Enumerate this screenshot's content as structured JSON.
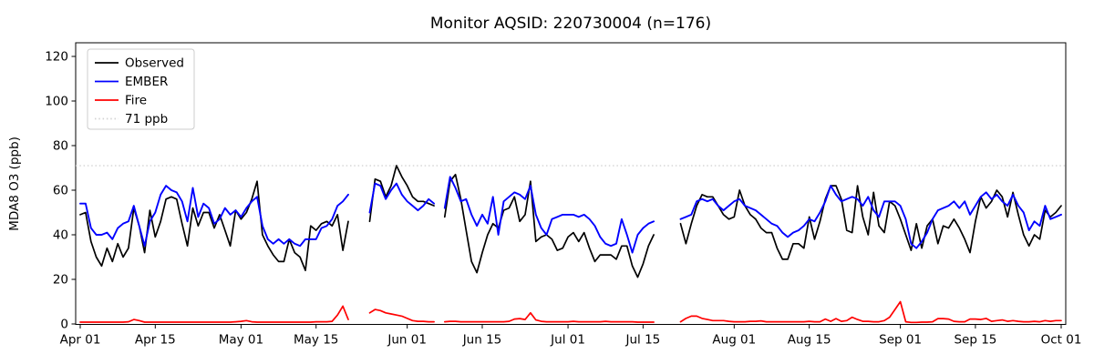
{
  "figure": {
    "background": "#ffffff"
  },
  "chart_data": {
    "type": "line",
    "title": "Monitor AQSID: 220730004 (n=176)",
    "ylabel": "MDA8 O3 (ppb)",
    "xlabel": "",
    "n_label": 176,
    "ylim": [
      0,
      126
    ],
    "yticks": [
      0,
      20,
      40,
      60,
      80,
      100,
      120
    ],
    "x_is_daily_days_from_apr01": true,
    "x_total_days": 183,
    "xticks": [
      {
        "label": "Apr 01",
        "day": 0
      },
      {
        "label": "Apr 15",
        "day": 14
      },
      {
        "label": "May 01",
        "day": 30
      },
      {
        "label": "May 15",
        "day": 44
      },
      {
        "label": "Jun 01",
        "day": 61
      },
      {
        "label": "Jun 15",
        "day": 75
      },
      {
        "label": "Jul 01",
        "day": 91
      },
      {
        "label": "Jul 15",
        "day": 105
      },
      {
        "label": "Aug 01",
        "day": 122
      },
      {
        "label": "Aug 15",
        "day": 136
      },
      {
        "label": "Sep 01",
        "day": 153
      },
      {
        "label": "Sep 15",
        "day": 167
      },
      {
        "label": "Oct 01",
        "day": 183
      }
    ],
    "threshold": {
      "label": "71 ppb",
      "value": 71,
      "color": "#d3d3d3",
      "style": "dotted"
    },
    "legend": {
      "position": "upper-left",
      "entries": [
        "Observed",
        "EMBER",
        "Fire",
        "71 ppb"
      ]
    },
    "missing_days": [
      51,
      52,
      53,
      67,
      108,
      109,
      110,
      111
    ],
    "series": [
      {
        "name": "Observed",
        "color": "#000000",
        "values": [
          49,
          50,
          37,
          30,
          26,
          34,
          28,
          36,
          30,
          34,
          52,
          44,
          32,
          51,
          39,
          46,
          56,
          57,
          56,
          45,
          35,
          52,
          44,
          50,
          50,
          43,
          49,
          42,
          35,
          51,
          47,
          50,
          56,
          64,
          40,
          35,
          31,
          28,
          28,
          38,
          32,
          30,
          24,
          44,
          42,
          45,
          46,
          44,
          49,
          33,
          46,
          null,
          null,
          null,
          46,
          65,
          64,
          57,
          62,
          71,
          66,
          62,
          57,
          55,
          55,
          54,
          53,
          null,
          48,
          64,
          67,
          56,
          42,
          28,
          23,
          32,
          40,
          45,
          43,
          51,
          52,
          57,
          46,
          49,
          64,
          37,
          39,
          40,
          38,
          33,
          34,
          39,
          41,
          37,
          41,
          34,
          28,
          31,
          31,
          31,
          29,
          35,
          35,
          26,
          21,
          27,
          35,
          40,
          null,
          null,
          null,
          null,
          45,
          36,
          45,
          53,
          58,
          57,
          57,
          53,
          49,
          47,
          48,
          60,
          53,
          49,
          47,
          43,
          41,
          41,
          34,
          29,
          29,
          36,
          36,
          34,
          48,
          38,
          46,
          56,
          62,
          62,
          56,
          42,
          41,
          62,
          48,
          40,
          59,
          44,
          41,
          55,
          53,
          47,
          40,
          33,
          45,
          34,
          44,
          47,
          36,
          44,
          43,
          47,
          43,
          38,
          32,
          46,
          57,
          52,
          55,
          60,
          57,
          48,
          59,
          49,
          40,
          35,
          40,
          38,
          51,
          48,
          50,
          53
        ]
      },
      {
        "name": "EMBER",
        "color": "#0000ff",
        "values": [
          54,
          54,
          43,
          40,
          40,
          41,
          38,
          43,
          45,
          46,
          53,
          44,
          35,
          46,
          50,
          58,
          62,
          60,
          59,
          55,
          46,
          61,
          48,
          54,
          52,
          45,
          47,
          52,
          49,
          51,
          48,
          52,
          55,
          57,
          44,
          38,
          36,
          38,
          36,
          38,
          36,
          35,
          38,
          38,
          38,
          43,
          44,
          47,
          53,
          55,
          58,
          null,
          null,
          null,
          50,
          63,
          62,
          56,
          60,
          63,
          58,
          55,
          53,
          51,
          53,
          56,
          54,
          null,
          52,
          66,
          61,
          55,
          56,
          49,
          44,
          49,
          45,
          57,
          40,
          55,
          57,
          59,
          58,
          56,
          62,
          49,
          43,
          40,
          47,
          48,
          49,
          49,
          49,
          48,
          49,
          47,
          44,
          39,
          36,
          35,
          36,
          47,
          40,
          32,
          40,
          43,
          45,
          46,
          null,
          null,
          null,
          null,
          47,
          48,
          49,
          55,
          56,
          55,
          56,
          53,
          51,
          53,
          55,
          56,
          53,
          52,
          51,
          49,
          47,
          45,
          44,
          41,
          39,
          41,
          42,
          44,
          47,
          46,
          50,
          55,
          62,
          58,
          55,
          56,
          57,
          56,
          53,
          57,
          51,
          48,
          55,
          55,
          55,
          53,
          47,
          36,
          34,
          37,
          41,
          47,
          51,
          52,
          53,
          55,
          52,
          55,
          49,
          53,
          57,
          59,
          56,
          58,
          55,
          53,
          58,
          53,
          50,
          42,
          46,
          44,
          53,
          47,
          48,
          49
        ]
      },
      {
        "name": "Fire",
        "color": "#ff0000",
        "values": [
          0.8,
          0.8,
          0.8,
          0.8,
          0.8,
          0.8,
          0.8,
          0.8,
          0.8,
          1,
          2,
          1.5,
          0.8,
          0.8,
          0.8,
          0.8,
          0.8,
          0.8,
          0.8,
          0.8,
          0.8,
          0.8,
          0.8,
          0.8,
          0.8,
          0.8,
          0.8,
          0.8,
          0.8,
          1,
          1.2,
          1.5,
          1,
          0.8,
          0.8,
          0.8,
          0.8,
          0.8,
          0.8,
          0.8,
          0.8,
          0.8,
          0.8,
          0.8,
          1,
          1,
          1,
          1.2,
          4,
          8,
          2,
          null,
          null,
          null,
          5,
          6.5,
          6,
          5,
          4.5,
          4,
          3.5,
          2.5,
          1.5,
          1.2,
          1.2,
          1,
          1,
          null,
          1,
          1.2,
          1.2,
          1,
          1,
          1,
          1,
          1,
          1,
          1,
          1,
          1,
          1.2,
          2.2,
          2.4,
          2,
          5,
          1.8,
          1.2,
          1,
          1,
          1,
          1,
          1,
          1.2,
          1,
          1,
          1,
          1,
          1,
          1.2,
          1,
          1,
          1,
          1,
          1,
          0.8,
          0.8,
          0.8,
          0.8,
          null,
          null,
          null,
          null,
          1,
          2.5,
          3.5,
          3.5,
          2.5,
          2,
          1.5,
          1.5,
          1.5,
          1.2,
          1,
          1,
          1,
          1.2,
          1.2,
          1.4,
          1,
          1,
          1,
          1,
          1,
          1,
          1,
          1,
          1.2,
          1,
          1,
          2.2,
          1.2,
          2.4,
          1.2,
          1.5,
          3,
          2,
          1.2,
          1.2,
          1,
          1,
          1.5,
          3,
          6.5,
          10,
          1,
          0.7,
          0.7,
          0.8,
          0.8,
          1,
          2.4,
          2.4,
          2.2,
          1.2,
          1,
          1,
          2.2,
          2.2,
          2,
          2.5,
          1.2,
          1.5,
          1.8,
          1.2,
          1.5,
          1.2,
          1,
          1,
          1.2,
          1,
          1.5,
          1.2,
          1.5,
          1.5
        ]
      }
    ]
  }
}
